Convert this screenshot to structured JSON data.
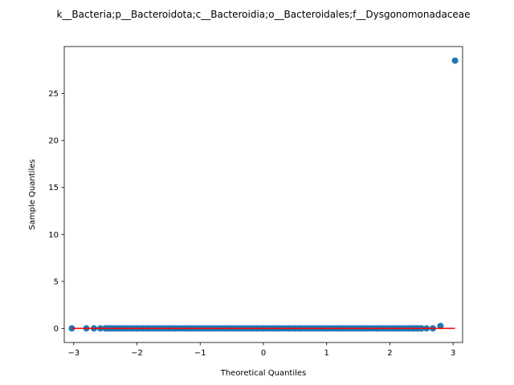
{
  "chart_data": {
    "type": "scatter",
    "title": "k__Bacteria;p__Bacteroidota;c__Bacteroidia;o__Bacteroidales;f__Dysgonomonadaceae",
    "xlabel": "Theoretical Quantiles",
    "ylabel": "Sample Quantiles",
    "xlim": [
      -3.15,
      3.15
    ],
    "ylim": [
      -1.5,
      30.0
    ],
    "xticks": [
      -3,
      -2,
      -1,
      0,
      1,
      2,
      3
    ],
    "yticks": [
      0,
      5,
      10,
      15,
      20,
      25
    ],
    "grid": false,
    "legend": "none",
    "marker_color": "#1f77b4",
    "line_color": "#ff0000",
    "reference_line": {
      "x": [
        -3.03,
        3.03
      ],
      "y": [
        0,
        0
      ]
    },
    "points": {
      "x": [
        -3.03,
        -2.8,
        -2.68,
        -2.58,
        -2.5,
        -2.43,
        -2.37,
        -2.3,
        -2.2,
        -2.1,
        -2.0,
        -1.8,
        -1.6,
        -1.4,
        -1.2,
        -1.0,
        -0.8,
        -0.6,
        -0.4,
        -0.2,
        0.0,
        0.2,
        0.4,
        0.6,
        0.8,
        1.0,
        1.2,
        1.4,
        1.6,
        1.8,
        2.0,
        2.1,
        2.2,
        2.3,
        2.37,
        2.43,
        2.5,
        2.58,
        2.68,
        2.8,
        3.03
      ],
      "y": [
        0,
        0,
        0,
        0,
        0,
        0,
        0,
        0,
        0,
        0,
        0,
        0,
        0,
        0,
        0,
        0,
        0,
        0,
        0,
        0,
        0,
        0,
        0,
        0,
        0,
        0,
        0,
        0,
        0,
        0,
        0,
        0,
        0,
        0,
        0,
        0,
        0,
        0,
        0,
        0.25,
        28.5
      ]
    }
  }
}
